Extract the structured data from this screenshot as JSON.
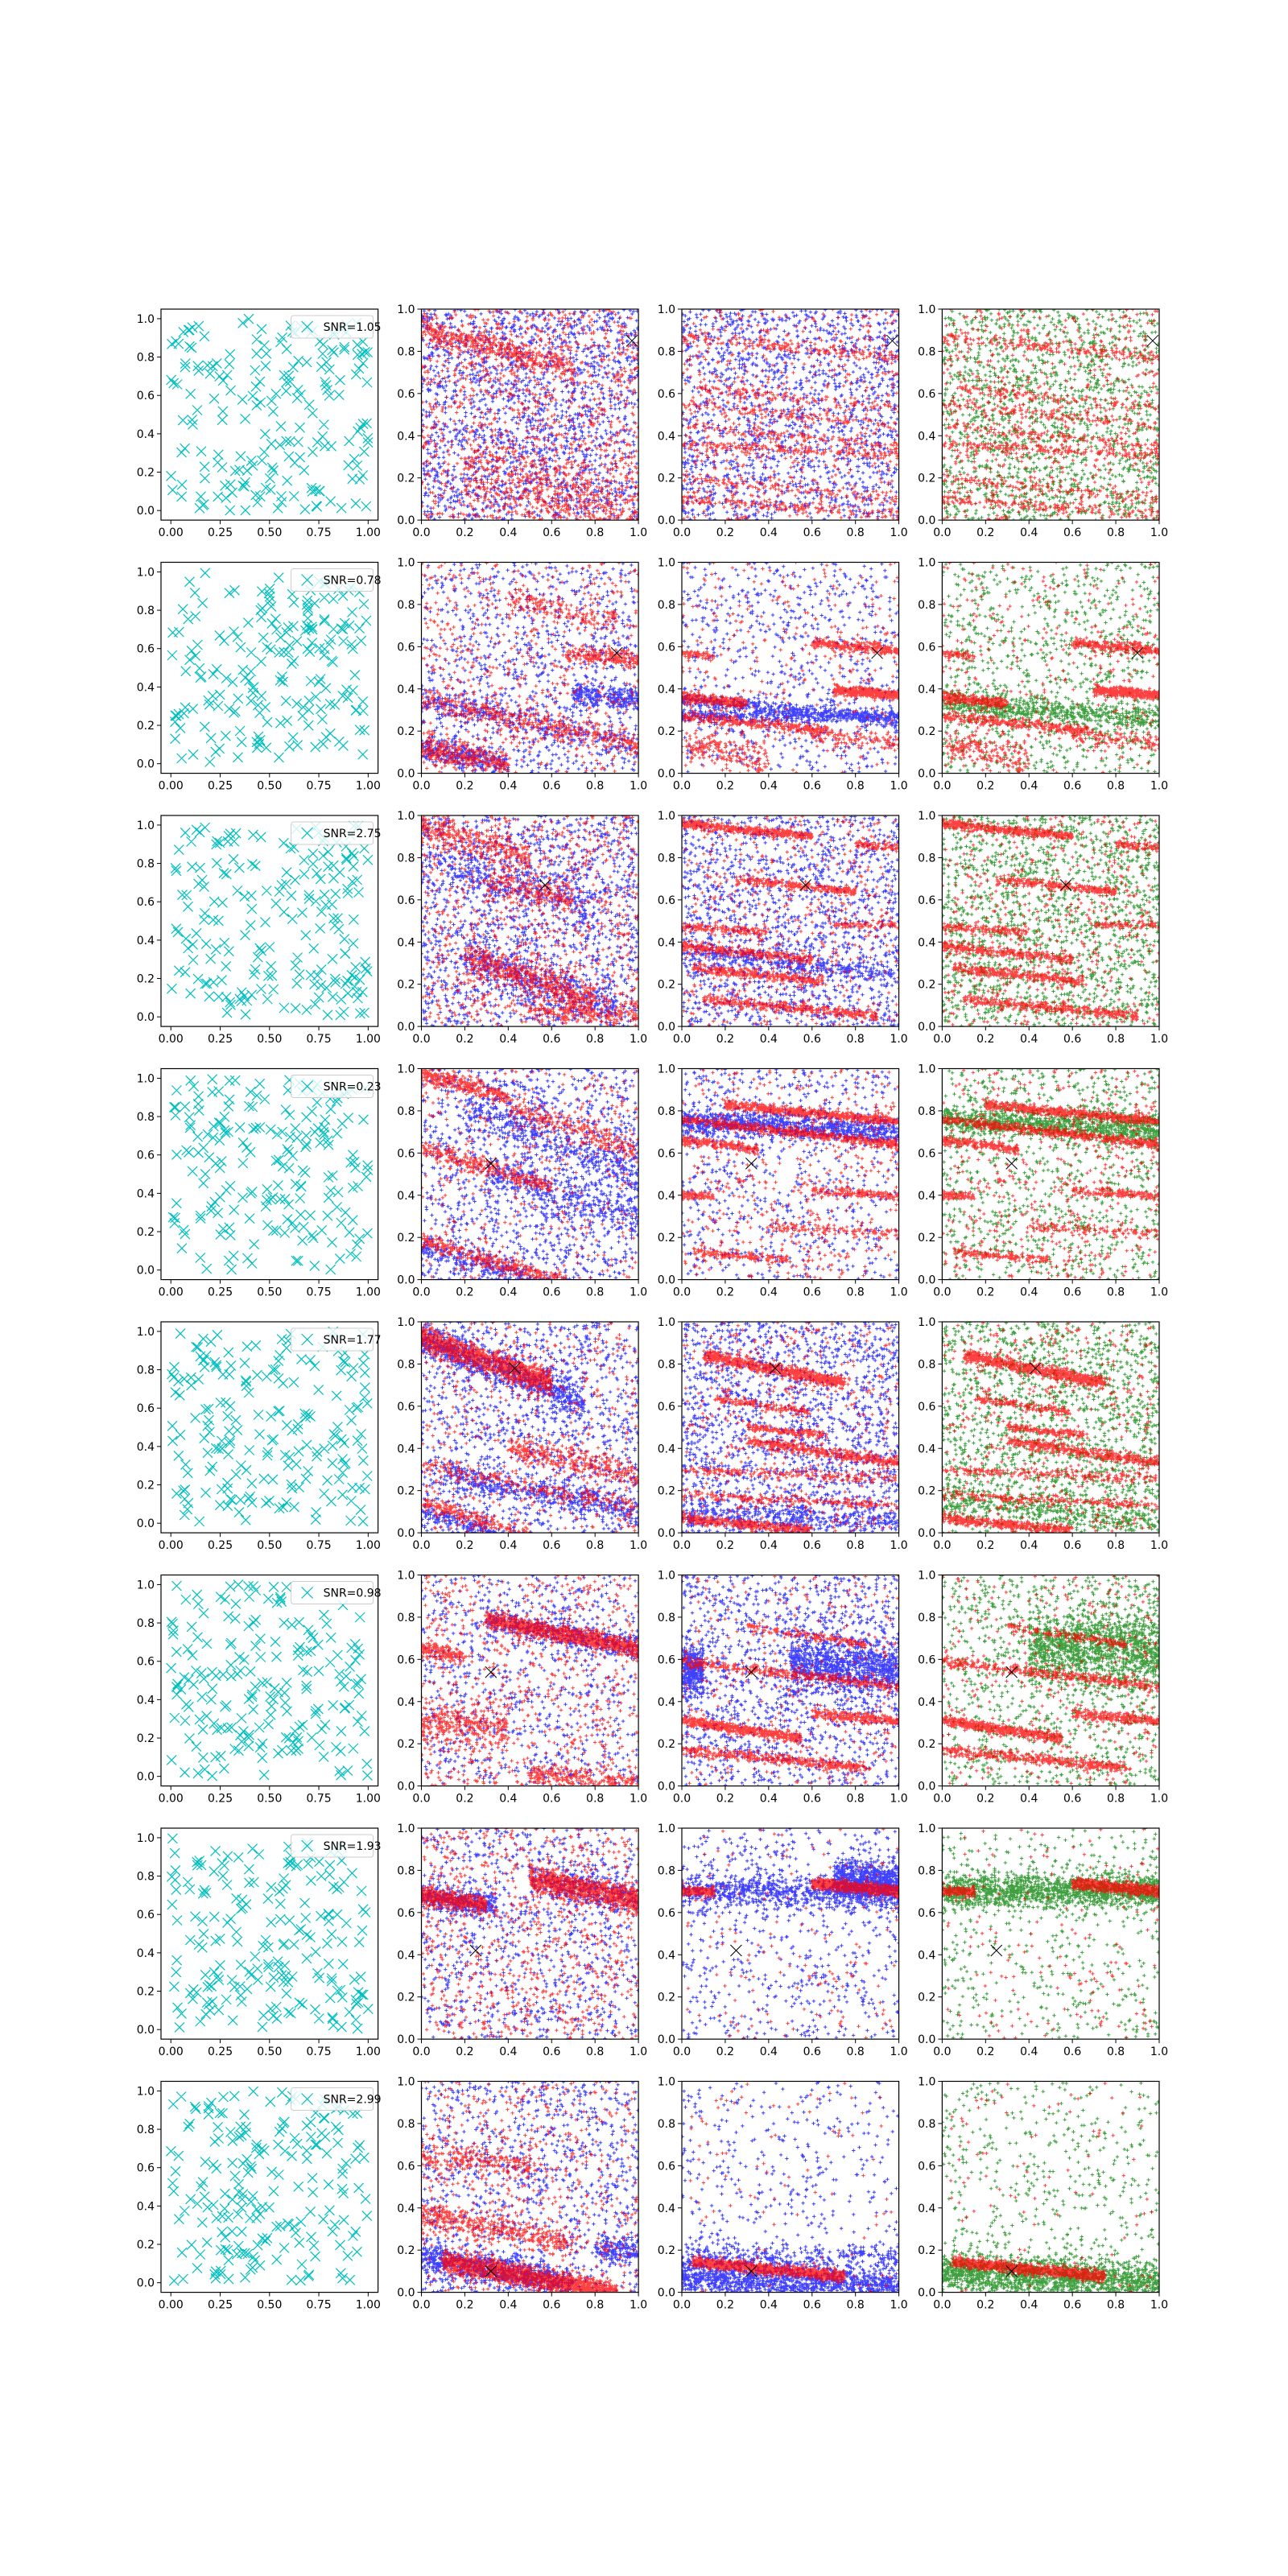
{
  "chart_data": {
    "type": "scatter",
    "layout": "8 rows x 4 columns",
    "colors": {
      "column1_marker": "#00bfbf",
      "red_points": "#ff0000",
      "blue_points": "#0000ff",
      "green_points": "#008000",
      "highlight_marker": "#000000"
    },
    "column1": {
      "marker": "x",
      "xticks": [
        "0.00",
        "0.25",
        "0.50",
        "0.75",
        "1.00"
      ],
      "yticks": [
        "0.0",
        "0.2",
        "0.4",
        "0.6",
        "0.8",
        "1.0"
      ],
      "legend_placement": "top-right"
    },
    "columns2to4": {
      "marker": "+",
      "xlim": [
        0,
        1
      ],
      "ylim": [
        0,
        1
      ],
      "xticks": [
        "0.0",
        "0.2",
        "0.4",
        "0.6",
        "0.8",
        "1.0"
      ],
      "yticks": [
        "0.0",
        "0.2",
        "0.4",
        "0.6",
        "0.8",
        "1.0"
      ],
      "column_series": [
        [
          "red",
          "blue"
        ],
        [
          "red",
          "blue"
        ],
        [
          "red",
          "green"
        ]
      ]
    },
    "rows": [
      {
        "legend": "SNR=1.05",
        "snr": 1.05,
        "highlight": [
          0.97,
          0.85
        ]
      },
      {
        "legend": "SNR=0.78",
        "snr": 0.78,
        "highlight": [
          0.9,
          0.57
        ]
      },
      {
        "legend": "SNR=2.75",
        "snr": 2.75,
        "highlight": [
          0.57,
          0.67
        ]
      },
      {
        "legend": "SNR=0.23",
        "snr": 0.23,
        "highlight": [
          0.32,
          0.55
        ]
      },
      {
        "legend": "SNR=1.77",
        "snr": 1.77,
        "highlight": [
          0.43,
          0.78
        ]
      },
      {
        "legend": "SNR=0.98",
        "snr": 0.98,
        "highlight": [
          0.32,
          0.54
        ]
      },
      {
        "legend": "SNR=1.93",
        "snr": 1.93,
        "highlight": [
          0.25,
          0.42
        ]
      },
      {
        "legend": "SNR=2.99",
        "snr": 2.99,
        "highlight": [
          0.32,
          0.1
        ]
      }
    ]
  }
}
